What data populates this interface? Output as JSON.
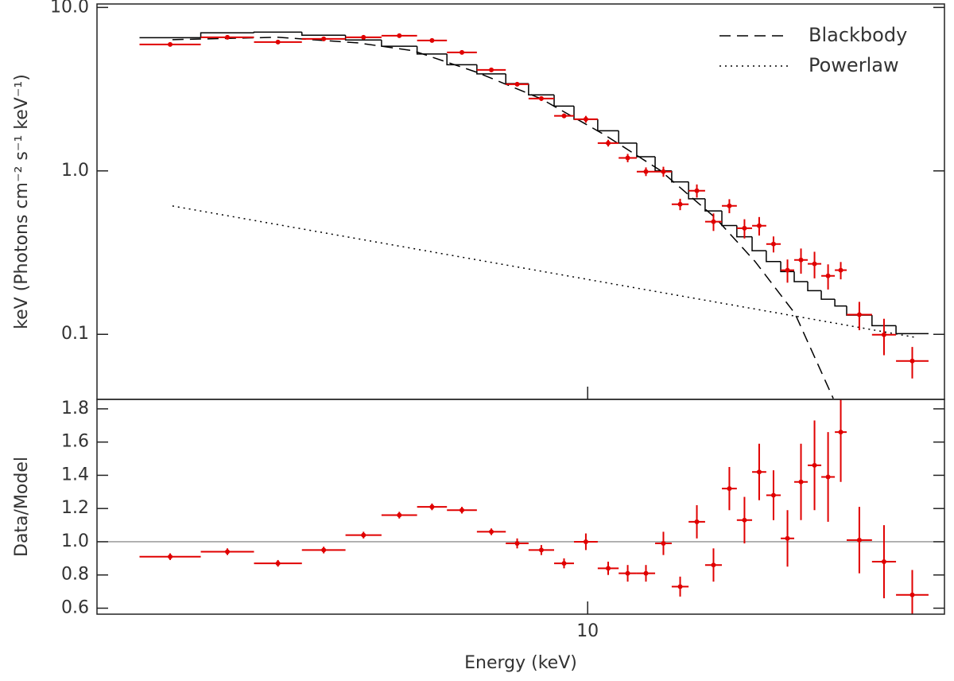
{
  "chart_data": [
    {
      "type": "spectrum",
      "ylabel": "keV (Photons cm⁻² s⁻¹ keV⁻¹)",
      "log_x": true,
      "log_y": true,
      "xlim": [
        3,
        24
      ],
      "ylim": [
        0.04,
        10.5
      ],
      "yticks": [
        {
          "value": 10,
          "label": "10.0"
        },
        {
          "value": 1,
          "label": "1.0"
        },
        0.1
      ],
      "legend": "upper right",
      "bins": [
        3.33,
        3.87,
        4.41,
        4.96,
        5.52,
        6.03,
        6.58,
        7.08,
        7.62,
        8.18,
        8.65,
        9.21,
        9.67,
        10.25,
        10.79,
        11.28,
        11.8,
        12.29,
        12.81,
        13.34,
        13.9,
        14.42,
        14.97,
        15.5,
        16.06,
        16.6,
        17.16,
        17.74,
        18.34,
        18.88,
        20.09,
        21.31,
        23.08
      ],
      "data": {
        "color": "#e00000",
        "values": [
          5.94,
          6.57,
          6.14,
          6.42,
          6.57,
          6.72,
          6.28,
          5.31,
          4.15,
          3.39,
          2.77,
          2.17,
          2.07,
          1.48,
          1.2,
          0.99,
          0.99,
          0.625,
          0.756,
          0.489,
          0.611,
          0.446,
          0.462,
          0.357,
          0.247,
          0.285,
          0.27,
          0.228,
          0.247,
          0.132,
          0.0995,
          0.0687
        ],
        "errors": [
          0.13,
          0.14,
          0.14,
          0.14,
          0.13,
          0.12,
          0.1,
          0.09,
          0.08,
          0.1,
          0.09,
          0.07,
          0.1,
          0.07,
          0.07,
          0.06,
          0.07,
          0.05,
          0.07,
          0.06,
          0.06,
          0.06,
          0.06,
          0.04,
          0.04,
          0.05,
          0.05,
          0.04,
          0.03,
          0.026,
          0.025,
          0.015
        ]
      },
      "model": {
        "color": "#000000",
        "values": [
          6.53,
          6.99,
          7.06,
          6.76,
          6.32,
          5.79,
          5.19,
          4.46,
          3.92,
          3.42,
          2.92,
          2.49,
          2.07,
          1.76,
          1.48,
          1.22,
          1.0,
          0.856,
          0.675,
          0.569,
          0.463,
          0.395,
          0.325,
          0.279,
          0.242,
          0.21,
          0.185,
          0.164,
          0.149,
          0.131,
          0.113,
          0.101
        ]
      },
      "series": [
        {
          "name": "Blackbody",
          "color": "#000000",
          "dash": "dashed",
          "x": [
            3.61,
            4.68,
            5.69,
            6.52,
            7.62,
            8.91,
            10.41,
            11.94,
            13.68,
            15.08,
            16.63,
            18.27
          ],
          "values": [
            6.35,
            6.57,
            6.07,
            5.43,
            4.01,
            2.77,
            1.67,
            1.01,
            0.516,
            0.279,
            0.134,
            0.0405
          ]
        },
        {
          "name": "Powerlaw",
          "color": "#000000",
          "dash": "dotted",
          "x": [
            3.61,
            22.3
          ],
          "values": [
            0.61,
            0.096
          ]
        }
      ]
    },
    {
      "type": "ratio",
      "xlabel": "Energy (keV)",
      "ylabel": "Data/Model",
      "log_x": true,
      "log_y": false,
      "xlim": [
        3,
        24
      ],
      "xticks": [
        10
      ],
      "ylim": [
        0.564,
        1.857
      ],
      "yticks": [
        0.6,
        0.8,
        {
          "value": 1,
          "label": "1.0"
        },
        1.2,
        1.4,
        1.6,
        1.8
      ],
      "reference": 1,
      "bins": [
        3.33,
        3.87,
        4.41,
        4.96,
        5.52,
        6.03,
        6.58,
        7.08,
        7.62,
        8.18,
        8.65,
        9.21,
        9.67,
        10.25,
        10.79,
        11.28,
        11.8,
        12.29,
        12.81,
        13.34,
        13.9,
        14.42,
        14.97,
        15.5,
        16.06,
        16.6,
        17.16,
        17.74,
        18.34,
        18.88,
        20.09,
        21.31,
        23.08
      ],
      "data": {
        "color": "#e00000",
        "values": [
          0.91,
          0.94,
          0.87,
          0.95,
          1.04,
          1.16,
          1.21,
          1.19,
          1.06,
          0.99,
          0.95,
          0.87,
          1.0,
          0.84,
          0.81,
          0.81,
          0.99,
          0.73,
          1.12,
          0.86,
          1.32,
          1.13,
          1.42,
          1.28,
          1.02,
          1.36,
          1.46,
          1.39,
          1.66,
          1.01,
          0.88,
          0.68
        ],
        "errors": [
          0.02,
          0.02,
          0.02,
          0.02,
          0.02,
          0.02,
          0.02,
          0.02,
          0.02,
          0.03,
          0.03,
          0.03,
          0.05,
          0.04,
          0.05,
          0.05,
          0.07,
          0.06,
          0.1,
          0.1,
          0.13,
          0.14,
          0.17,
          0.15,
          0.17,
          0.23,
          0.27,
          0.27,
          0.3,
          0.2,
          0.22,
          0.15
        ]
      }
    }
  ]
}
